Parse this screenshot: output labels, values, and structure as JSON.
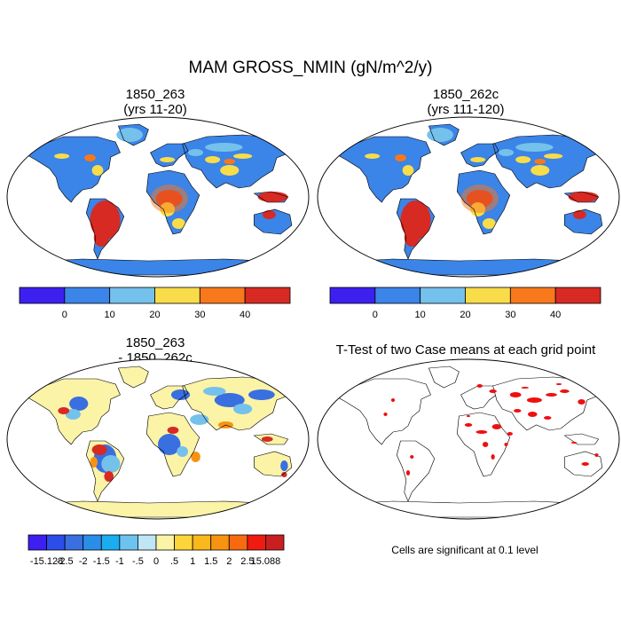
{
  "title": "MAM GROSS_NMIN (gN/m^2/y)",
  "panels": [
    {
      "id": "case1",
      "title_line1": "1850_263",
      "title_line2": "(yrs 11-20)"
    },
    {
      "id": "case2",
      "title_line1": "1850_262c",
      "title_line2": "(yrs 111-120)"
    },
    {
      "id": "diff",
      "title_line1": "1850_263",
      "title_line2": "- 1850_262c"
    },
    {
      "id": "ttest",
      "title_line1": "T-Test of two Case means at each grid point",
      "title_line2": ""
    }
  ],
  "colorbar_abs": {
    "colors": [
      "#3d1ff0",
      "#3b84e8",
      "#74c1ec",
      "#f8dc4a",
      "#f8781c",
      "#d62a23"
    ],
    "labels": [
      "0",
      "10",
      "20",
      "30",
      "40"
    ]
  },
  "colorbar_diff": {
    "colors": [
      "#3d1ff0",
      "#2c4de8",
      "#3a6fe0",
      "#2a8ee8",
      "#1aaef0",
      "#6dc3ef",
      "#bfe6f5",
      "#fbf3a6",
      "#fbd53a",
      "#f9b81c",
      "#f89312",
      "#f86a10",
      "#f01a10",
      "#c82020"
    ],
    "labels": [
      "-15.128",
      "-2.5",
      "-2",
      "-1.5",
      "-1",
      "-.5",
      "0",
      ".5",
      "1",
      "1.5",
      "2",
      "2.5",
      "15.088"
    ]
  },
  "significance_note": "Cells are significant at 0.1 level",
  "colors": {
    "ocean": "#ffffff",
    "land_abs": "#3b84e8",
    "tropics_high": "#d62a23",
    "mid": "#f8dc4a",
    "diff_land": "#fbf3a6",
    "significant": "#ee1010",
    "coast": "#000000"
  }
}
